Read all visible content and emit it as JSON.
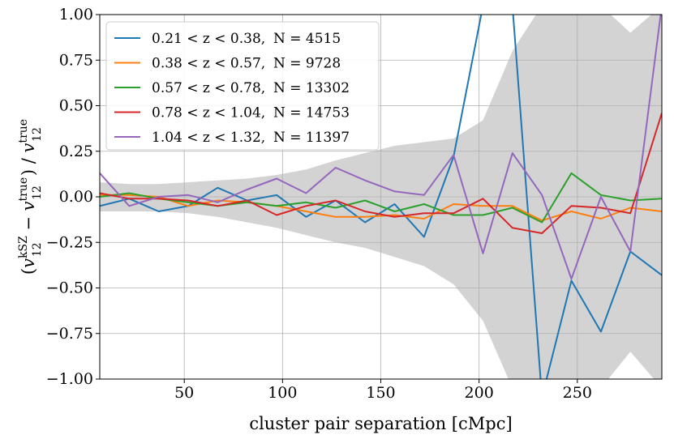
{
  "chart_data": {
    "type": "line",
    "title": "",
    "xlabel": "cluster pair separation [cMpc]",
    "ylabel": "(v12^kSZ − v12^true) / v12^true",
    "ylabel_parts": {
      "open": "(",
      "v1": "v",
      "sup1": "kSZ",
      "sub1": "12",
      "minus": " − ",
      "v2": "v",
      "sup2": "true",
      "sub2": "12",
      "close": ")",
      "slash": " / ",
      "v3": "v",
      "sup3": "true",
      "sub3": "12"
    },
    "xlim": [
      7,
      293
    ],
    "ylim": [
      -1.0,
      1.0
    ],
    "x_ticks": [
      50,
      100,
      150,
      200,
      250
    ],
    "x_tick_labels": [
      "50",
      "100",
      "150",
      "200",
      "250"
    ],
    "y_ticks": [
      -1.0,
      -0.75,
      -0.5,
      -0.25,
      0.0,
      0.25,
      0.5,
      0.75,
      1.0
    ],
    "y_tick_labels": [
      "−1.00",
      "−0.75",
      "−0.50",
      "−0.25",
      "0.00",
      "0.25",
      "0.50",
      "0.75",
      "1.00"
    ],
    "grid": true,
    "legend_position": "top-left",
    "x": [
      7,
      22,
      37,
      52,
      67,
      82,
      97,
      112,
      127,
      142,
      157,
      172,
      187,
      202,
      217,
      232,
      247,
      262,
      277,
      293
    ],
    "series": [
      {
        "name": "0.21 < z < 0.38, N = 4515",
        "label_range": "0.21 < z < 0.38,",
        "label_n": "N = 4515",
        "color": "#1f77b4",
        "values": [
          -0.05,
          -0.01,
          -0.08,
          -0.05,
          0.05,
          -0.02,
          0.01,
          -0.11,
          -0.02,
          -0.14,
          -0.04,
          -0.22,
          0.22,
          1.05,
          1.05,
          -1.1,
          -0.46,
          -0.74,
          -0.3,
          -0.43
        ]
      },
      {
        "name": "0.38 < z < 0.57, N = 9728",
        "label_range": "0.38 < z < 0.57,",
        "label_n": "N = 9728",
        "color": "#ff7f0e",
        "values": [
          0.01,
          0.01,
          0.0,
          -0.05,
          -0.02,
          -0.03,
          -0.05,
          -0.08,
          -0.11,
          -0.11,
          -0.1,
          -0.12,
          -0.04,
          -0.05,
          -0.05,
          -0.13,
          -0.08,
          -0.12,
          -0.06,
          -0.08
        ]
      },
      {
        "name": "0.57 < z < 0.78, N = 13302",
        "label_range": "0.57 < z < 0.78,",
        "label_n": "N = 13302",
        "color": "#2ca02c",
        "values": [
          0.0,
          0.02,
          -0.01,
          -0.03,
          -0.05,
          -0.03,
          -0.05,
          -0.03,
          -0.06,
          -0.02,
          -0.08,
          -0.04,
          -0.1,
          -0.1,
          -0.06,
          -0.14,
          0.13,
          0.01,
          -0.02,
          -0.01
        ]
      },
      {
        "name": "0.78 < z < 1.04, N = 14753",
        "label_range": "0.78 < z < 1.04,",
        "label_n": "N = 14753",
        "color": "#d62728",
        "values": [
          0.02,
          -0.01,
          -0.01,
          -0.02,
          -0.05,
          -0.02,
          -0.1,
          -0.05,
          -0.02,
          -0.08,
          -0.11,
          -0.09,
          -0.09,
          -0.01,
          -0.17,
          -0.2,
          -0.05,
          -0.06,
          -0.09,
          0.46
        ]
      },
      {
        "name": "1.04 < z < 1.32, N = 11397",
        "label_range": "1.04 < z < 1.32,",
        "label_n": "N = 11397",
        "color": "#9467bd",
        "values": [
          0.13,
          -0.05,
          0.0,
          0.01,
          -0.03,
          0.04,
          0.1,
          0.02,
          0.16,
          0.09,
          0.03,
          0.01,
          0.23,
          -0.31,
          0.24,
          0.01,
          -0.45,
          0.0,
          -0.3,
          1.05
        ]
      }
    ],
    "band": {
      "color": "#d3d3d3",
      "upper": [
        0.08,
        0.07,
        0.07,
        0.08,
        0.09,
        0.1,
        0.12,
        0.15,
        0.2,
        0.24,
        0.28,
        0.3,
        0.32,
        0.42,
        0.8,
        1.05,
        1.05,
        1.05,
        0.9,
        1.05
      ],
      "lower": [
        -0.08,
        -0.08,
        -0.08,
        -0.09,
        -0.11,
        -0.14,
        -0.17,
        -0.21,
        -0.25,
        -0.28,
        -0.33,
        -0.38,
        -0.48,
        -0.68,
        -1.05,
        -1.05,
        -1.05,
        -1.05,
        -0.85,
        -1.05
      ]
    }
  }
}
